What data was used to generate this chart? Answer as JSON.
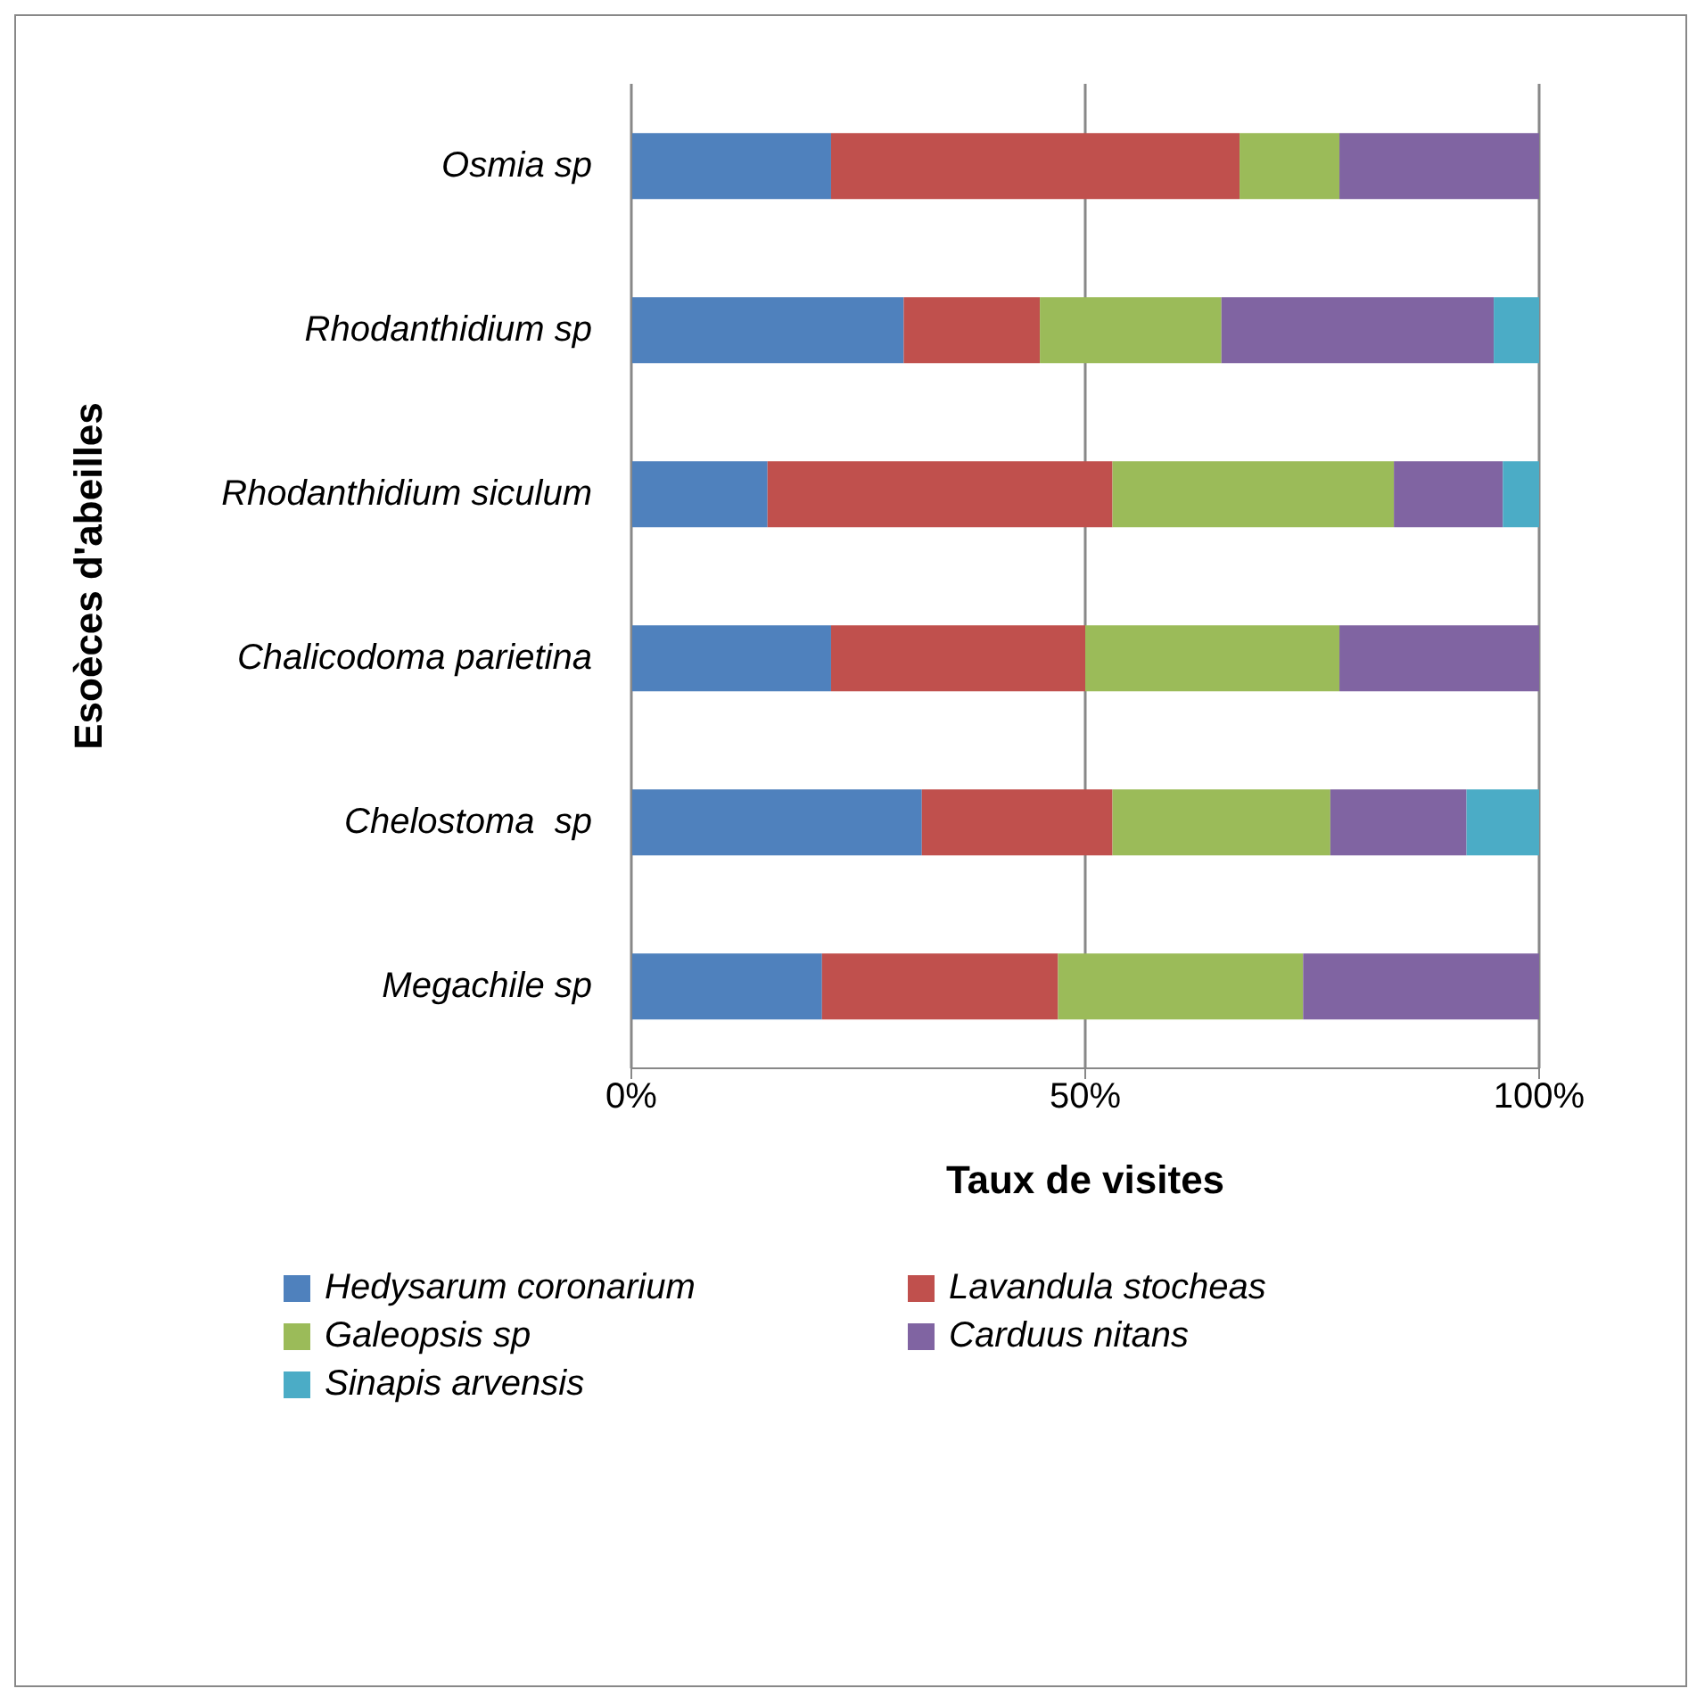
{
  "chart_data": {
    "type": "bar",
    "orientation": "horizontal",
    "stacked": true,
    "xlabel": "Taux de visites",
    "ylabel": "Esoèces d'abeilles",
    "categories": [
      "Osmia sp",
      "Rhodanthidium sp",
      "Rhodanthidium siculum",
      "Chalicodoma parietina",
      "Chelostoma  sp",
      "Megachile sp"
    ],
    "series": [
      {
        "name": "Hedysarum coronarium",
        "color": "#4f81bd",
        "values": [
          22,
          30,
          15,
          22,
          32,
          21
        ]
      },
      {
        "name": "Lavandula stocheas",
        "color": "#c0504d",
        "values": [
          45,
          15,
          38,
          28,
          21,
          26
        ]
      },
      {
        "name": "Galeopsis sp",
        "color": "#9bbb59",
        "values": [
          11,
          20,
          31,
          28,
          24,
          27
        ]
      },
      {
        "name": "Carduus nitans",
        "color": "#8064a2",
        "values": [
          22,
          30,
          12,
          22,
          15,
          26
        ]
      },
      {
        "name": "Sinapis arvensis",
        "color": "#4bacc6",
        "values": [
          null,
          5,
          4,
          null,
          8,
          null
        ]
      }
    ],
    "xlim": [
      0,
      100
    ],
    "xticks": [
      {
        "value": 0,
        "label": "0%"
      },
      {
        "value": 50,
        "label": "50%"
      },
      {
        "value": 100,
        "label": "100%"
      }
    ],
    "grid": "x",
    "legend": "bottom"
  }
}
